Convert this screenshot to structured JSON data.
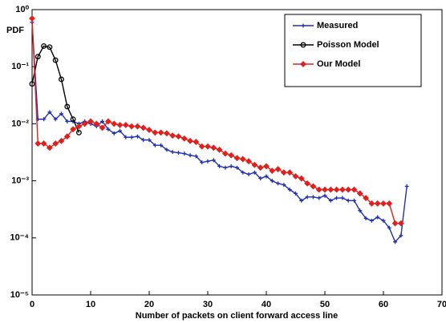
{
  "chart_data": {
    "type": "line",
    "log_y": true,
    "ylabel": "PDF",
    "xlabel": "Number of packets on client forward access line",
    "xlim": [
      0,
      70
    ],
    "xticks": [
      0,
      10,
      20,
      30,
      40,
      50,
      60,
      70
    ],
    "ylim": [
      1e-05,
      1
    ],
    "yticks": [
      {
        "value": 1e-05,
        "label": "10⁻⁵"
      },
      {
        "value": 0.0001,
        "label": "10⁻⁴"
      },
      {
        "value": 0.001,
        "label": "10⁻³"
      },
      {
        "value": 0.01,
        "label": "10⁻²"
      },
      {
        "value": 0.1,
        "label": "10⁻¹"
      },
      {
        "value": 1,
        "label": "10⁰"
      }
    ],
    "legend": "upper right",
    "series": [
      {
        "name": "Measured",
        "color": "#1f2fb0",
        "marker": "star",
        "x": [
          0,
          1,
          2,
          3,
          4,
          5,
          6,
          7,
          8,
          9,
          10,
          11,
          12,
          13,
          14,
          15,
          16,
          17,
          18,
          19,
          20,
          21,
          22,
          23,
          24,
          25,
          26,
          27,
          28,
          29,
          30,
          31,
          32,
          33,
          34,
          35,
          36,
          37,
          38,
          39,
          40,
          41,
          42,
          43,
          44,
          45,
          46,
          47,
          48,
          49,
          50,
          51,
          52,
          53,
          54,
          55,
          56,
          57,
          58,
          59,
          60,
          61,
          62,
          63,
          64
        ],
        "values": [
          0.6,
          0.012,
          0.012,
          0.016,
          0.012,
          0.015,
          0.011,
          0.011,
          0.01,
          0.011,
          0.01,
          0.009,
          0.011,
          0.008,
          0.0068,
          0.0075,
          0.0058,
          0.0058,
          0.006,
          0.0052,
          0.0052,
          0.0042,
          0.0042,
          0.0035,
          0.0032,
          0.0031,
          0.003,
          0.0028,
          0.0027,
          0.0021,
          0.0022,
          0.0023,
          0.0018,
          0.0017,
          0.0018,
          0.0017,
          0.0014,
          0.0013,
          0.0014,
          0.0011,
          0.0012,
          0.001,
          0.0009,
          0.00085,
          0.0007,
          0.0006,
          0.00045,
          0.00052,
          0.00052,
          0.0005,
          0.00055,
          0.00045,
          0.0005,
          0.0005,
          0.00045,
          0.00045,
          0.0003,
          0.00022,
          0.0002,
          0.00023,
          0.0002,
          0.00015,
          8.5e-05,
          0.00011,
          0.0008
        ]
      },
      {
        "name": "Poisson Model",
        "color": "#000000",
        "marker": "circle",
        "x": [
          0,
          1,
          2,
          3,
          4,
          5,
          6,
          7,
          8
        ],
        "values": [
          0.05,
          0.15,
          0.23,
          0.22,
          0.13,
          0.06,
          0.02,
          0.012,
          0.007
        ]
      },
      {
        "name": "Our Model",
        "color": "#e0201c",
        "marker": "diamond",
        "x": [
          0,
          1,
          2,
          3,
          4,
          5,
          6,
          7,
          8,
          9,
          10,
          11,
          12,
          13,
          14,
          15,
          16,
          17,
          18,
          19,
          20,
          21,
          22,
          23,
          24,
          25,
          26,
          27,
          28,
          29,
          30,
          31,
          32,
          33,
          34,
          35,
          36,
          37,
          38,
          39,
          40,
          41,
          42,
          43,
          44,
          45,
          46,
          47,
          48,
          49,
          50,
          51,
          52,
          53,
          54,
          55,
          56,
          57,
          58,
          59,
          60,
          61,
          62,
          63
        ],
        "values": [
          0.7,
          0.0045,
          0.0045,
          0.0038,
          0.0045,
          0.005,
          0.006,
          0.008,
          0.009,
          0.01,
          0.011,
          0.01,
          0.0085,
          0.011,
          0.01,
          0.0095,
          0.0095,
          0.009,
          0.009,
          0.0085,
          0.0078,
          0.007,
          0.007,
          0.0068,
          0.0062,
          0.006,
          0.0055,
          0.005,
          0.0048,
          0.004,
          0.004,
          0.0038,
          0.0035,
          0.003,
          0.0028,
          0.0025,
          0.0024,
          0.0022,
          0.0019,
          0.0017,
          0.0018,
          0.0015,
          0.0016,
          0.0014,
          0.0014,
          0.0012,
          0.0011,
          0.0009,
          0.0008,
          0.0007,
          0.0007,
          0.0007,
          0.0007,
          0.0007,
          0.0007,
          0.0007,
          0.0006,
          0.0005,
          0.0004,
          0.0004,
          0.0004,
          0.0004,
          0.00018,
          0.00018
        ]
      }
    ]
  }
}
